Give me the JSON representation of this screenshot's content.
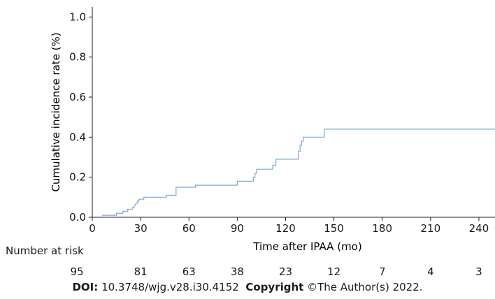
{
  "chart_data": {
    "type": "line",
    "step": true,
    "title": "",
    "xlabel": "Time after IPAA (mo)",
    "ylabel": "Cumulative incidence rate (%)",
    "xlim": [
      0,
      250
    ],
    "ylim": [
      0,
      1.05
    ],
    "xticks": [
      0,
      30,
      60,
      90,
      120,
      150,
      180,
      210,
      240
    ],
    "yticks": [
      0.0,
      0.2,
      0.4,
      0.6,
      0.8,
      1.0
    ],
    "ytick_labels": [
      "0.0",
      "0.2",
      "0.4",
      "0.6",
      "0.8",
      "1.0"
    ],
    "line_color": "#7aa6dc",
    "grid": false,
    "series": [
      {
        "x": [
          6,
          15,
          19,
          22,
          25,
          26,
          27,
          28,
          29,
          30,
          32,
          35,
          46,
          52,
          64,
          90,
          100,
          101,
          102,
          110,
          112,
          114,
          128,
          129,
          130,
          131,
          144,
          250
        ],
        "y": [
          0.01,
          0.02,
          0.03,
          0.04,
          0.05,
          0.06,
          0.07,
          0.08,
          0.09,
          0.09,
          0.1,
          0.1,
          0.11,
          0.15,
          0.16,
          0.18,
          0.2,
          0.22,
          0.24,
          0.24,
          0.26,
          0.29,
          0.33,
          0.36,
          0.38,
          0.4,
          0.44,
          0.44
        ]
      }
    ],
    "risk_table": {
      "label": "Number at risk",
      "times": [
        0,
        30,
        60,
        90,
        120,
        150,
        180,
        210,
        240
      ],
      "counts": [
        "95",
        "81",
        "63",
        "38",
        "23",
        "12",
        "7",
        "4",
        "3"
      ]
    }
  },
  "footer": {
    "doi_label": "DOI:",
    "doi_value": "10.3748/wjg.v28.i30.4152",
    "copyright_label": "Copyright",
    "copyright_value": "©The Author(s) 2022."
  }
}
